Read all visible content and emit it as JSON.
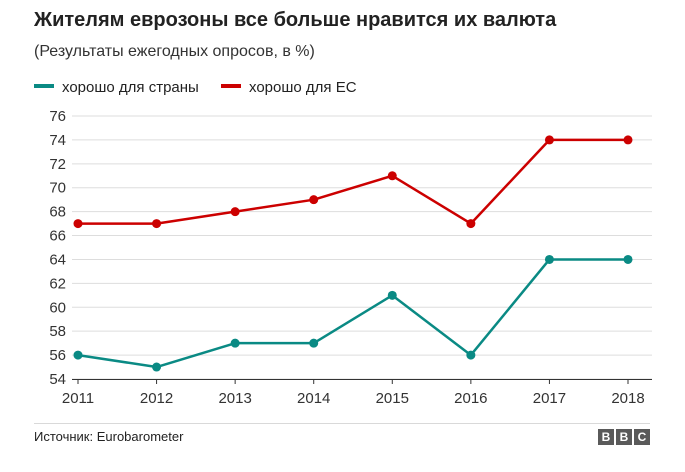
{
  "header": {
    "title": "Жителям еврозоны все больше нравится их валюта",
    "subtitle": "(Результаты ежегодных опросов, в %)"
  },
  "footer": {
    "source": "Источник: Eurobarometer",
    "logo": [
      "B",
      "B",
      "C"
    ]
  },
  "colors": {
    "country": "#0a8a84",
    "eu": "#cc0000",
    "grid": "#dddddd",
    "axis": "#333333"
  },
  "chart_data": {
    "type": "line",
    "title": "Жителям еврозоны все больше нравится их валюта",
    "subtitle": "(Результаты ежегодных опросов, в %)",
    "xlabel": "",
    "ylabel": "",
    "x": [
      "2011",
      "2012",
      "2013",
      "2014",
      "2015",
      "2016",
      "2017",
      "2018"
    ],
    "ylim": [
      54,
      76
    ],
    "yticks": [
      54,
      56,
      58,
      60,
      62,
      64,
      66,
      68,
      70,
      72,
      74,
      76
    ],
    "grid": "horizontal",
    "legend_position": "top-left",
    "series": [
      {
        "name": "хорошо для страны",
        "color": "#0a8a84",
        "values": [
          56,
          55,
          57,
          57,
          61,
          56,
          64,
          64
        ]
      },
      {
        "name": "хорошо для ЕС",
        "color": "#cc0000",
        "values": [
          67,
          67,
          68,
          69,
          71,
          67,
          74,
          74
        ]
      }
    ]
  }
}
